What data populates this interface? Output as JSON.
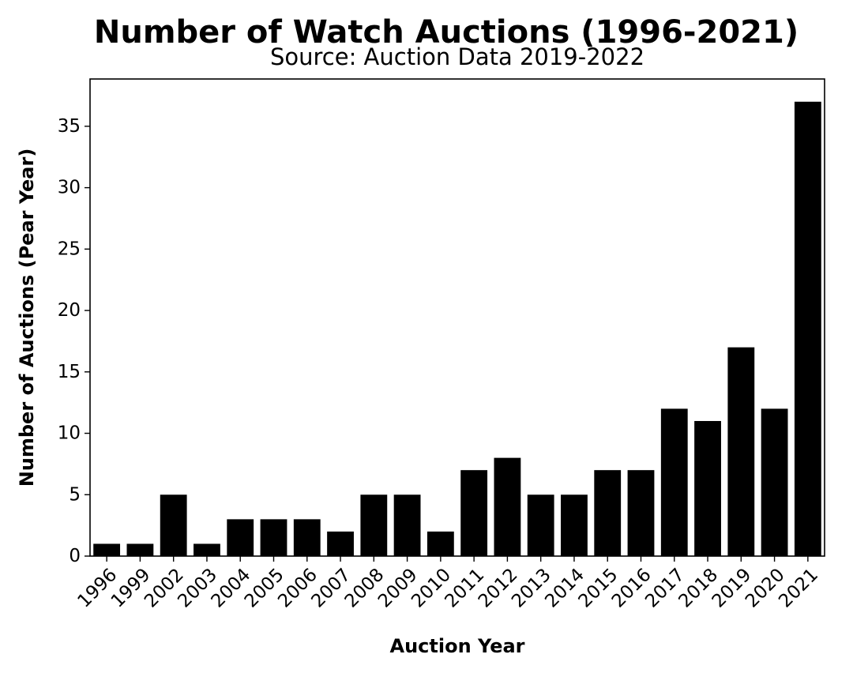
{
  "chart_data": {
    "type": "bar",
    "title": "Number of Watch Auctions (1996-2021)",
    "subtitle": "Source: Auction Data 2019-2022",
    "xlabel": "Auction Year",
    "ylabel": "Number of Auctions (Pear Year)",
    "categories": [
      "1996",
      "1999",
      "2002",
      "2003",
      "2004",
      "2005",
      "2006",
      "2007",
      "2008",
      "2009",
      "2010",
      "2011",
      "2012",
      "2013",
      "2014",
      "2015",
      "2016",
      "2017",
      "2018",
      "2019",
      "2020",
      "2021"
    ],
    "values": [
      1,
      1,
      5,
      1,
      3,
      3,
      3,
      2,
      5,
      5,
      2,
      7,
      8,
      5,
      5,
      7,
      7,
      12,
      11,
      17,
      12,
      37
    ],
    "ylim": [
      0,
      38.85
    ],
    "yticks": [
      0,
      5,
      10,
      15,
      20,
      25,
      30,
      35
    ],
    "bar_color": "#000000",
    "grid": false,
    "legend": "none"
  }
}
